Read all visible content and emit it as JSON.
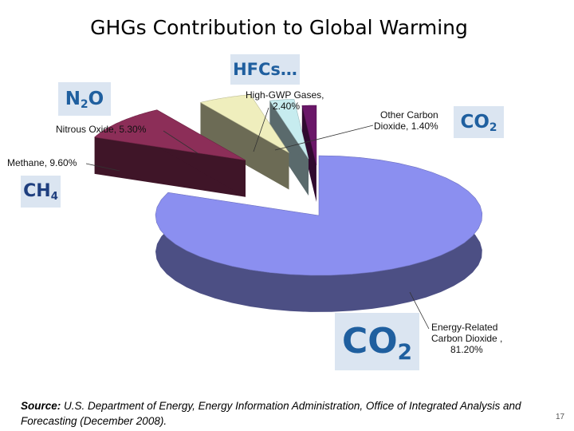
{
  "slide": {
    "title": "GHGs Contribution to Global Warming",
    "page_number": "17",
    "source_label": "Source:",
    "source_text": " U.S. Department of Energy, Energy Information Administration, Office of Integrated Analysis and Forecasting (December 2008)."
  },
  "badges": {
    "hfcs": "HFCs…",
    "n2o_main": "N",
    "n2o_sub": "2",
    "n2o_tail": "O",
    "co2_small_main": "CO",
    "co2_small_sub": "2",
    "ch4_main": "CH",
    "ch4_sub": "4",
    "co2_big_main": "CO",
    "co2_big_sub": "2"
  },
  "chart_data": {
    "type": "pie",
    "style": "3d-exploded",
    "slices": [
      {
        "label": "Energy-Related Carbon Dioxide , 81.20%",
        "value": 81.2,
        "color": "#8b8ff0"
      },
      {
        "label": "Methane, 9.60%",
        "value": 9.6,
        "color": "#8c2e58"
      },
      {
        "label": "Nitrous Oxide, 5.30%",
        "value": 5.3,
        "color": "#efeebd"
      },
      {
        "label": "High-GWP Gases, 2.40%",
        "value": 2.4,
        "color": "#c7ecef"
      },
      {
        "label": "Other Carbon Dioxide, 1.40%",
        "value": 1.4,
        "color": "#6a1768"
      }
    ],
    "labels": {
      "energy_co2": [
        "Energy-Related",
        "Carbon Dioxide ,",
        "81.20%"
      ],
      "methane": [
        "Methane, 9.60%"
      ],
      "nitrous": [
        "Nitrous Oxide, 5.30%"
      ],
      "hgwp": [
        "High-GWP Gases,",
        "2.40%"
      ],
      "other_co2": [
        "Other Carbon",
        "Dioxide, 1.40%"
      ]
    }
  }
}
